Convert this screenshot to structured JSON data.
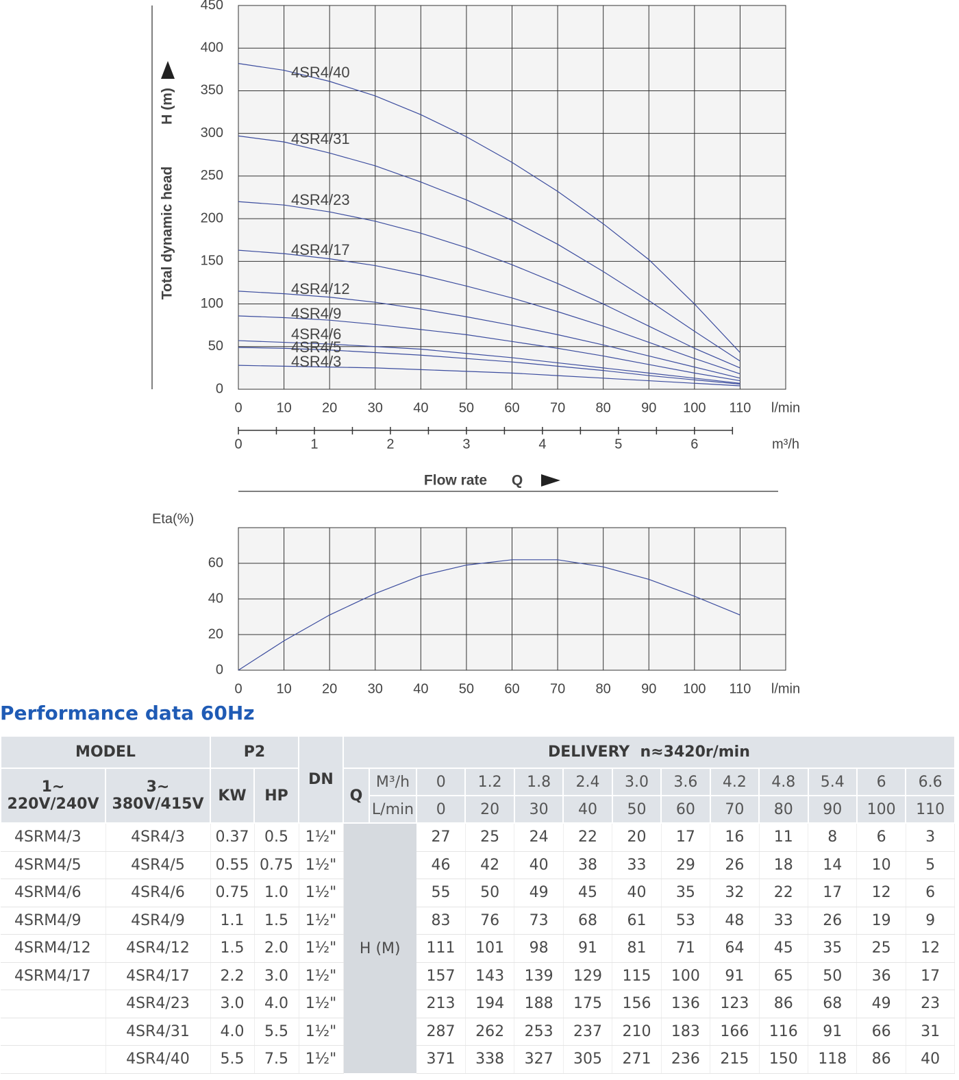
{
  "chart_data": [
    {
      "type": "line",
      "ylabel": "Total dynamic head",
      "yunit": "H (m)",
      "xunit": "l/min",
      "x2unit": "m³/h",
      "xlabel": "Flow rate",
      "xsymbol": "Q",
      "x": [
        0,
        10,
        20,
        30,
        40,
        50,
        60,
        70,
        80,
        90,
        100,
        110
      ],
      "xlim": [
        0,
        120
      ],
      "xticks": [
        0,
        10,
        20,
        30,
        40,
        50,
        60,
        70,
        80,
        90,
        100,
        110
      ],
      "x2lim": [
        0,
        7.2
      ],
      "x2ticks": [
        0,
        1,
        2,
        3,
        4,
        5,
        6
      ],
      "ylim": [
        0,
        450
      ],
      "yticks": [
        0,
        50,
        100,
        150,
        200,
        250,
        300,
        350,
        400,
        450
      ],
      "grid": true,
      "series": [
        {
          "name": "4SR4/40",
          "color": "#3b4c9e",
          "values": [
            382,
            374,
            361,
            344,
            322,
            296,
            266,
            232,
            194,
            152,
            100,
            43
          ]
        },
        {
          "name": "4SR4/31",
          "color": "#3b4c9e",
          "values": [
            297,
            290,
            277,
            262,
            243,
            222,
            198,
            170,
            138,
            104,
            68,
            33
          ]
        },
        {
          "name": "4SR4/23",
          "color": "#3b4c9e",
          "values": [
            220,
            216,
            208,
            197,
            183,
            166,
            146,
            124,
            100,
            74,
            48,
            25
          ]
        },
        {
          "name": "4SR4/17",
          "color": "#3b4c9e",
          "values": [
            163,
            159,
            153,
            145,
            134,
            121,
            107,
            91,
            74,
            55,
            36,
            18
          ]
        },
        {
          "name": "4SR4/12",
          "color": "#3b4c9e",
          "values": [
            115,
            112,
            108,
            102,
            94,
            85,
            75,
            64,
            52,
            39,
            26,
            13
          ]
        },
        {
          "name": "4SR4/9",
          "color": "#3b4c9e",
          "values": [
            86,
            84,
            81,
            76,
            70,
            64,
            56,
            48,
            39,
            29,
            19,
            10
          ]
        },
        {
          "name": "4SR4/6",
          "color": "#3b4c9e",
          "values": [
            57,
            55,
            53,
            50,
            47,
            42,
            37,
            31,
            25,
            19,
            13,
            7
          ]
        },
        {
          "name": "4SR4/5",
          "color": "#3b4c9e",
          "values": [
            49,
            48,
            46,
            43,
            40,
            36,
            32,
            27,
            22,
            16,
            11,
            6
          ]
        },
        {
          "name": "4SR4/3",
          "color": "#3b4c9e",
          "values": [
            28,
            27,
            26,
            25,
            23,
            21,
            19,
            16,
            13,
            10,
            7,
            4
          ]
        }
      ]
    },
    {
      "type": "line",
      "ylabel": "Eta(%)",
      "xunit": "l/min",
      "x": [
        0,
        10,
        20,
        30,
        40,
        50,
        60,
        70,
        80,
        90,
        100,
        110
      ],
      "xlim": [
        0,
        120
      ],
      "xticks": [
        0,
        10,
        20,
        30,
        40,
        50,
        60,
        70,
        80,
        90,
        100,
        110
      ],
      "ylim": [
        0,
        80
      ],
      "yticks": [
        0,
        20,
        40,
        60
      ],
      "grid": true,
      "series": [
        {
          "color": "#3b4c9e",
          "values": [
            0,
            16.5,
            31,
            43,
            53,
            59,
            62,
            62,
            58,
            51,
            41.5,
            31
          ]
        }
      ]
    }
  ],
  "heading": "Performance data 60Hz",
  "table": {
    "model": "MODEL",
    "p2": "P2",
    "dn": "DN",
    "delivery": "DELIVERY  n≈3420r/min",
    "phase1": [
      "1~",
      "220V/240V"
    ],
    "phase3": [
      "3~",
      "380V/415V"
    ],
    "kw": "KW",
    "hp": "HP",
    "q": "Q",
    "unit_m3h": "M³/h",
    "unit_lmin": "L/min",
    "m3h": [
      "0",
      "1.2",
      "1.8",
      "2.4",
      "3.0",
      "3.6",
      "4.2",
      "4.8",
      "5.4",
      "6",
      "6.6"
    ],
    "lmin": [
      0,
      20,
      30,
      40,
      50,
      60,
      70,
      80,
      90,
      100,
      110
    ],
    "h": "H (M)",
    "rows": [
      {
        "model1": "4SRM4/3",
        "model3": "4SR4/3",
        "kw": "0.37",
        "hp": "0.5",
        "dn": "1½\"",
        "values": [
          27,
          25,
          24,
          22,
          20,
          17,
          16,
          11,
          8,
          6,
          3
        ]
      },
      {
        "model1": "4SRM4/5",
        "model3": "4SR4/5",
        "kw": "0.55",
        "hp": "0.75",
        "dn": "1½\"",
        "values": [
          46,
          42,
          40,
          38,
          33,
          29,
          26,
          18,
          14,
          10,
          5
        ]
      },
      {
        "model1": "4SRM4/6",
        "model3": "4SR4/6",
        "kw": "0.75",
        "hp": "1.0",
        "dn": "1½\"",
        "values": [
          55,
          50,
          49,
          45,
          40,
          35,
          32,
          22,
          17,
          12,
          6
        ]
      },
      {
        "model1": "4SRM4/9",
        "model3": "4SR4/9",
        "kw": "1.1",
        "hp": "1.5",
        "dn": "1½\"",
        "values": [
          83,
          76,
          73,
          68,
          61,
          53,
          48,
          33,
          26,
          19,
          9
        ]
      },
      {
        "model1": "4SRM4/12",
        "model3": "4SR4/12",
        "kw": "1.5",
        "hp": "2.0",
        "dn": "1½\"",
        "values": [
          111,
          101,
          98,
          91,
          81,
          71,
          64,
          45,
          35,
          25,
          12
        ]
      },
      {
        "model1": "4SRM4/17",
        "model3": "4SR4/17",
        "kw": "2.2",
        "hp": "3.0",
        "dn": "1½\"",
        "values": [
          157,
          143,
          139,
          129,
          115,
          100,
          91,
          65,
          50,
          36,
          17
        ]
      },
      {
        "model1": null,
        "model3": "4SR4/23",
        "kw": "3.0",
        "hp": "4.0",
        "dn": "1½\"",
        "values": [
          213,
          194,
          188,
          175,
          156,
          136,
          123,
          86,
          68,
          49,
          23
        ]
      },
      {
        "model1": null,
        "model3": "4SR4/31",
        "kw": "4.0",
        "hp": "5.5",
        "dn": "1½\"",
        "values": [
          287,
          262,
          253,
          237,
          210,
          183,
          166,
          116,
          91,
          66,
          31
        ]
      },
      {
        "model1": null,
        "model3": "4SR4/40",
        "kw": "5.5",
        "hp": "7.5",
        "dn": "1½\"",
        "values": [
          371,
          338,
          327,
          305,
          271,
          236,
          215,
          150,
          118,
          86,
          40
        ]
      }
    ]
  }
}
